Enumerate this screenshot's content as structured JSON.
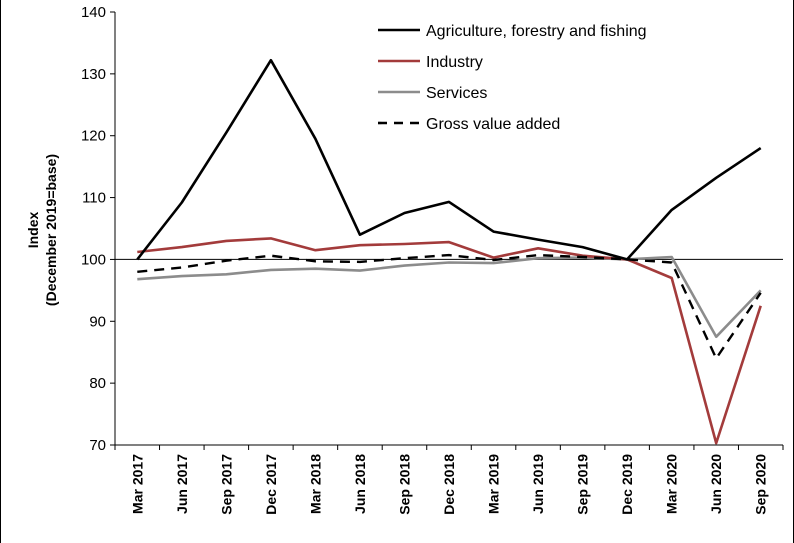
{
  "chart_data": {
    "type": "line",
    "categories": [
      "Mar 2017",
      "Jun 2017",
      "Sep 2017",
      "Dec 2017",
      "Mar 2018",
      "Jun 2018",
      "Sep 2018",
      "Dec 2018",
      "Mar 2019",
      "Jun 2019",
      "Sep 2019",
      "Dec 2019",
      "Mar 2020",
      "Jun 2020",
      "Sep 2020"
    ],
    "ylabel_line1": "Index",
    "ylabel_line2": "(December 2019=base)",
    "ylim": [
      70,
      140
    ],
    "yticks": [
      70,
      80,
      90,
      100,
      110,
      120,
      130,
      140
    ],
    "reference_line": 100,
    "legend_position": "top-right",
    "series": [
      {
        "name": "Agriculture, forestry and fishing",
        "color": "#000000",
        "dash": "solid",
        "values": [
          100,
          109.2,
          120.5,
          132.2,
          119.5,
          104,
          107.5,
          109.3,
          104.5,
          103.2,
          102,
          100,
          108,
          113.2,
          118
        ]
      },
      {
        "name": "Industry",
        "color": "#a33b3b",
        "dash": "solid",
        "values": [
          101.2,
          102,
          103,
          103.4,
          101.5,
          102.3,
          102.5,
          102.8,
          100.3,
          101.8,
          100.6,
          100,
          97,
          70.3,
          92.5
        ]
      },
      {
        "name": "Services",
        "color": "#8c8c8c",
        "dash": "solid",
        "values": [
          96.8,
          97.3,
          97.6,
          98.3,
          98.5,
          98.2,
          99,
          99.5,
          99.4,
          100.2,
          100.3,
          100,
          100.4,
          87.5,
          95
        ]
      },
      {
        "name": "Gross value added",
        "color": "#000000",
        "dash": "dashed",
        "values": [
          98,
          98.7,
          99.8,
          100.6,
          99.7,
          99.6,
          100.2,
          100.7,
          99.9,
          100.7,
          100.4,
          100,
          99.5,
          84,
          94.6
        ]
      }
    ]
  }
}
